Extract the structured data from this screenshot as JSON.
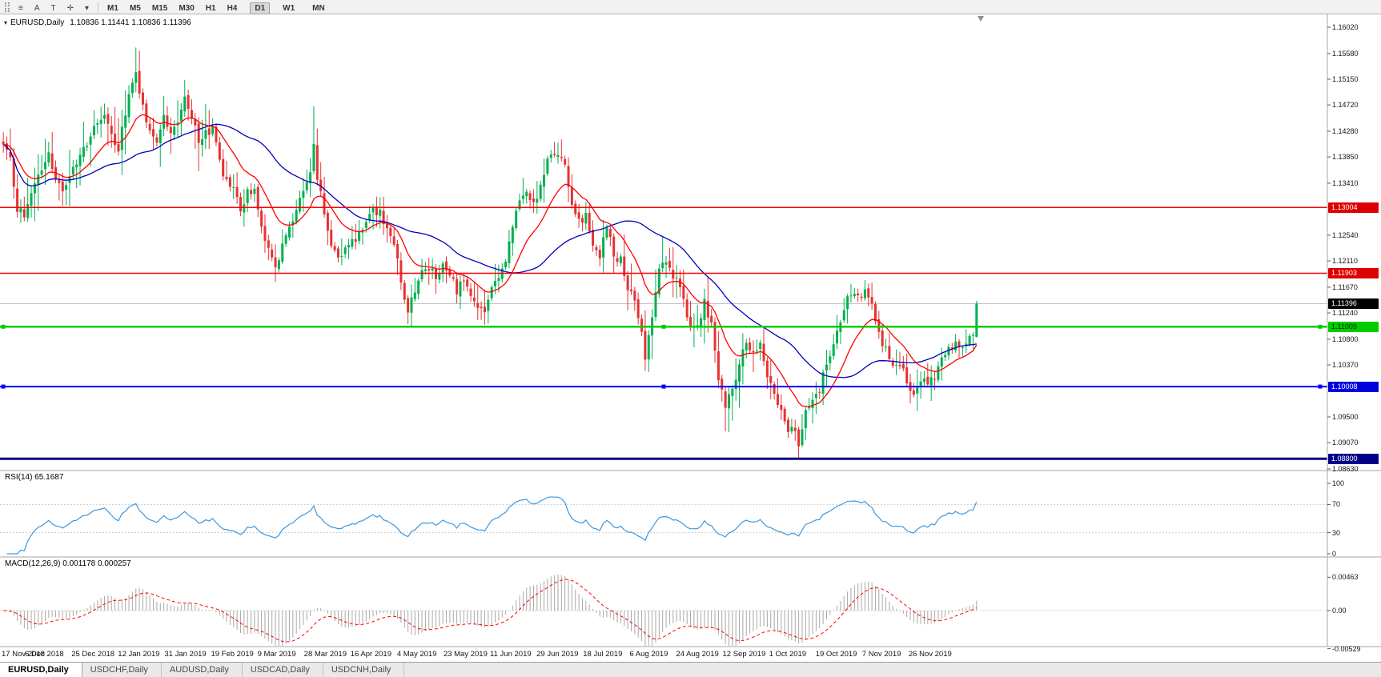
{
  "toolbar": {
    "icons": [
      {
        "name": "menu-icon",
        "glyph": "≡"
      },
      {
        "name": "annotation-a-button",
        "glyph": "A"
      },
      {
        "name": "text-tool-button",
        "glyph": "T"
      },
      {
        "name": "crosshair-tool-button",
        "glyph": "✛"
      },
      {
        "name": "tools-dropdown-button",
        "glyph": "▾"
      }
    ],
    "timeframes": [
      {
        "label": "M1",
        "active": false
      },
      {
        "label": "M5",
        "active": false
      },
      {
        "label": "M15",
        "active": false
      },
      {
        "label": "M30",
        "active": false
      },
      {
        "label": "H1",
        "active": false
      },
      {
        "label": "H4",
        "active": false
      },
      {
        "label": "D1",
        "active": true
      },
      {
        "label": "W1",
        "active": false
      },
      {
        "label": "MN",
        "active": false
      }
    ]
  },
  "chart_header": {
    "symbol": "EURUSD,Daily",
    "ohlc": "1.10836 1.11441 1.10836 1.11396",
    "collapse_glyph": "▾"
  },
  "price_axis": {
    "ticks": [
      "1.16020",
      "1.15580",
      "1.15150",
      "1.14720",
      "1.14280",
      "1.13850",
      "1.13410",
      "1.12540",
      "1.12110",
      "1.11670",
      "1.11240",
      "1.10800",
      "1.10370",
      "1.09500",
      "1.09070",
      "1.08630"
    ],
    "badges": [
      {
        "value": "1.13004",
        "price": 1.13004,
        "bg": "#dd0000",
        "fg": "#ffffff"
      },
      {
        "value": "1.11903",
        "price": 1.11903,
        "bg": "#dd0000",
        "fg": "#ffffff"
      },
      {
        "value": "1.11396",
        "price": 1.11396,
        "bg": "#000000",
        "fg": "#ffffff"
      },
      {
        "value": "1.11009",
        "price": 1.11009,
        "bg": "#00cc00",
        "fg": "#002200"
      },
      {
        "value": "1.10008",
        "price": 1.10008,
        "bg": "#0000dd",
        "fg": "#ffffff"
      },
      {
        "value": "1.08800",
        "price": 1.088,
        "bg": "#000088",
        "fg": "#ffffff"
      }
    ]
  },
  "levels": [
    {
      "price": 1.13004,
      "color": "#ff0000",
      "width": 1.5,
      "handles": false
    },
    {
      "price": 1.11903,
      "color": "#ff0000",
      "width": 1.5,
      "handles": false
    },
    {
      "price": 1.11009,
      "color": "#00cc00",
      "width": 2.5,
      "handles": true
    },
    {
      "price": 1.10008,
      "color": "#0000ff",
      "width": 2,
      "handles": true
    },
    {
      "price": 1.088,
      "color": "#000088",
      "width": 3,
      "handles": false
    }
  ],
  "current_price": {
    "price": 1.11396,
    "line_color": "#bcbcbc"
  },
  "indicators": {
    "rsi": {
      "label": "RSI(14) 65.1687",
      "period": 14,
      "value": 65.1687,
      "line_color": "#3d97dd",
      "ticks": [
        {
          "label": "100",
          "value": 100
        },
        {
          "label": "70",
          "value": 70
        },
        {
          "label": "30",
          "value": 30
        },
        {
          "label": "0",
          "value": 0
        }
      ],
      "dashed_levels": [
        70,
        30
      ]
    },
    "macd": {
      "label": "MACD(12,26,9) 0.001178 0.000257",
      "fast": 12,
      "slow": 26,
      "signal": 9,
      "main_value": 0.001178,
      "signal_value": 0.000257,
      "hist_color": "#a8a8a8",
      "signal_color": "#ff0000",
      "ticks": [
        {
          "label": "0.00463",
          "value": 0.00463
        },
        {
          "label": "0.00",
          "value": 0
        },
        {
          "label": "-0.00529",
          "value": -0.00529
        }
      ],
      "dashed_levels": [
        0
      ]
    }
  },
  "x_axis": {
    "dates": [
      "17 Nov 2018",
      "6 Dec 2018",
      "25 Dec 2018",
      "12 Jan 2019",
      "31 Jan 2019",
      "19 Feb 2019",
      "9 Mar 2019",
      "28 Mar 2019",
      "16 Apr 2019",
      "4 May 2019",
      "23 May 2019",
      "11 Jun 2019",
      "29 Jun 2019",
      "18 Jul 2019",
      "6 Aug 2019",
      "24 Aug 2019",
      "12 Sep 2019",
      "1 Oct 2019",
      "19 Oct 2019",
      "7 Nov 2019",
      "26 Nov 2019"
    ]
  },
  "tabs": [
    {
      "label": "EURUSD,Daily",
      "active": true
    },
    {
      "label": "USDCHF,Daily",
      "active": false
    },
    {
      "label": "AUDUSD,Daily",
      "active": false
    },
    {
      "label": "USDCAD,Daily",
      "active": false
    },
    {
      "label": "USDCNH,Daily",
      "active": false
    }
  ],
  "chart_data": {
    "type": "candlestick",
    "symbol": "EURUSD",
    "timeframe": "Daily",
    "n": 280,
    "visible_range": {
      "price_min": 1.0863,
      "price_max": 1.1602
    },
    "up_color": "#00b050",
    "down_color": "#e63232",
    "moving_averages": [
      {
        "kind": "ema",
        "period": 15,
        "color": "#ff0000"
      },
      {
        "kind": "sma",
        "period": 40,
        "color": "#0000bb"
      }
    ],
    "anchors": [
      [
        0,
        1.1413
      ],
      [
        2,
        1.138
      ],
      [
        4,
        1.13
      ],
      [
        6,
        1.1285
      ],
      [
        8,
        1.133
      ],
      [
        10,
        1.136
      ],
      [
        13,
        1.1385
      ],
      [
        15,
        1.1345
      ],
      [
        17,
        1.133
      ],
      [
        19,
        1.135
      ],
      [
        21,
        1.138
      ],
      [
        23,
        1.14
      ],
      [
        25,
        1.142
      ],
      [
        27,
        1.1438
      ],
      [
        29,
        1.1448
      ],
      [
        31,
        1.142
      ],
      [
        33,
        1.1398
      ],
      [
        35,
        1.146
      ],
      [
        37,
        1.1505
      ],
      [
        38,
        1.153
      ],
      [
        39,
        1.149
      ],
      [
        40,
        1.147
      ],
      [
        42,
        1.143
      ],
      [
        44,
        1.1415
      ],
      [
        46,
        1.145
      ],
      [
        48,
        1.142
      ],
      [
        50,
        1.144
      ],
      [
        52,
        1.1482
      ],
      [
        54,
        1.1448
      ],
      [
        56,
        1.1412
      ],
      [
        58,
        1.1422
      ],
      [
        60,
        1.1432
      ],
      [
        62,
        1.138
      ],
      [
        64,
        1.134
      ],
      [
        66,
        1.1332
      ],
      [
        68,
        1.13
      ],
      [
        70,
        1.1325
      ],
      [
        72,
        1.133
      ],
      [
        74,
        1.1268
      ],
      [
        76,
        1.123
      ],
      [
        78,
        1.1195
      ],
      [
        80,
        1.124
      ],
      [
        82,
        1.127
      ],
      [
        84,
        1.13
      ],
      [
        86,
        1.1325
      ],
      [
        88,
        1.136
      ],
      [
        89,
        1.141
      ],
      [
        90,
        1.135
      ],
      [
        92,
        1.129
      ],
      [
        94,
        1.124
      ],
      [
        96,
        1.1222
      ],
      [
        98,
        1.123
      ],
      [
        100,
        1.124
      ],
      [
        102,
        1.1262
      ],
      [
        104,
        1.128
      ],
      [
        106,
        1.1292
      ],
      [
        108,
        1.1298
      ],
      [
        110,
        1.1262
      ],
      [
        112,
        1.124
      ],
      [
        114,
        1.118
      ],
      [
        116,
        1.1125
      ],
      [
        118,
        1.116
      ],
      [
        120,
        1.119
      ],
      [
        122,
        1.12
      ],
      [
        124,
        1.1182
      ],
      [
        126,
        1.12
      ],
      [
        128,
        1.1188
      ],
      [
        130,
        1.1162
      ],
      [
        132,
        1.118
      ],
      [
        134,
        1.1155
      ],
      [
        136,
        1.114
      ],
      [
        138,
        1.1128
      ],
      [
        140,
        1.1165
      ],
      [
        142,
        1.1185
      ],
      [
        144,
        1.1215
      ],
      [
        146,
        1.1268
      ],
      [
        148,
        1.1308
      ],
      [
        150,
        1.1332
      ],
      [
        152,
        1.1305
      ],
      [
        154,
        1.134
      ],
      [
        156,
        1.1375
      ],
      [
        158,
        1.139
      ],
      [
        160,
        1.1378
      ],
      [
        161,
        1.1368
      ],
      [
        163,
        1.13
      ],
      [
        165,
        1.128
      ],
      [
        167,
        1.1285
      ],
      [
        169,
        1.124
      ],
      [
        171,
        1.1222
      ],
      [
        173,
        1.1268
      ],
      [
        175,
        1.1222
      ],
      [
        177,
        1.1212
      ],
      [
        179,
        1.117
      ],
      [
        181,
        1.115
      ],
      [
        183,
        1.1085
      ],
      [
        184,
        1.1045
      ],
      [
        185,
        1.108
      ],
      [
        186,
        1.112
      ],
      [
        188,
        1.12
      ],
      [
        190,
        1.1205
      ],
      [
        192,
        1.118
      ],
      [
        194,
        1.1172
      ],
      [
        196,
        1.112
      ],
      [
        198,
        1.1095
      ],
      [
        200,
        1.112
      ],
      [
        201,
        1.114
      ],
      [
        203,
        1.11
      ],
      [
        205,
        1.101
      ],
      [
        207,
        1.097
      ],
      [
        209,
        1.1
      ],
      [
        211,
        1.104
      ],
      [
        213,
        1.1072
      ],
      [
        215,
        1.1062
      ],
      [
        217,
        1.1072
      ],
      [
        219,
        1.1015
      ],
      [
        221,
        1.0992
      ],
      [
        223,
        1.0955
      ],
      [
        225,
        1.093
      ],
      [
        227,
        1.0922
      ],
      [
        228,
        1.09
      ],
      [
        230,
        1.0958
      ],
      [
        232,
        1.0975
      ],
      [
        234,
        1.0998
      ],
      [
        236,
        1.1042
      ],
      [
        238,
        1.1068
      ],
      [
        240,
        1.1105
      ],
      [
        242,
        1.1148
      ],
      [
        244,
        1.1158
      ],
      [
        246,
        1.1152
      ],
      [
        247,
        1.1165
      ],
      [
        249,
        1.1132
      ],
      [
        251,
        1.1088
      ],
      [
        253,
        1.1062
      ],
      [
        255,
        1.1032
      ],
      [
        257,
        1.104
      ],
      [
        259,
        1.1008
      ],
      [
        261,
        1.0992
      ],
      [
        263,
        1.1005
      ],
      [
        265,
        1.1012
      ],
      [
        267,
        1.1015
      ],
      [
        269,
        1.1042
      ],
      [
        271,
        1.1062
      ],
      [
        273,
        1.1078
      ],
      [
        275,
        1.1062
      ],
      [
        277,
        1.1082
      ],
      [
        278,
        1.10836
      ],
      [
        279,
        1.11396
      ]
    ],
    "wick_overrides": [
      {
        "i": 38,
        "high": 1.1568
      },
      {
        "i": 52,
        "high": 1.1514
      },
      {
        "i": 78,
        "low": 1.1176
      },
      {
        "i": 89,
        "high": 1.147
      },
      {
        "i": 116,
        "low": 1.111
      },
      {
        "i": 138,
        "low": 1.1107
      },
      {
        "i": 158,
        "high": 1.1402
      },
      {
        "i": 184,
        "low": 1.1027
      },
      {
        "i": 207,
        "low": 1.0926
      },
      {
        "i": 228,
        "low": 1.0879
      },
      {
        "i": 247,
        "high": 1.1179
      },
      {
        "i": 260,
        "low": 1.0989
      }
    ],
    "last_candle": {
      "open": 1.10836,
      "high": 1.11441,
      "low": 1.10836,
      "close": 1.11396
    }
  }
}
